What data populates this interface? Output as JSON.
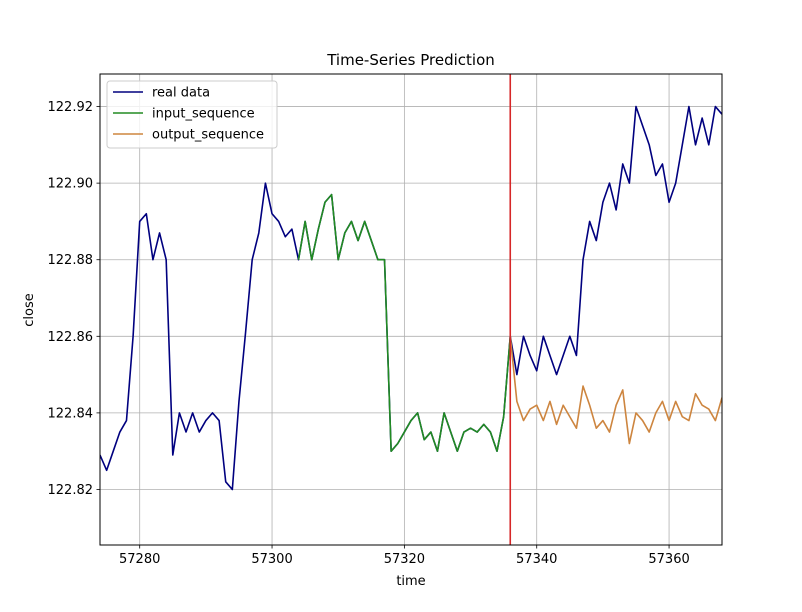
{
  "chart_data": {
    "type": "line",
    "title": "Time-Series Prediction",
    "xlabel": "time",
    "ylabel": "close",
    "xlim": [
      57274,
      57368
    ],
    "ylim": [
      122.8055,
      122.9285
    ],
    "x_ticks": [
      57280,
      57300,
      57320,
      57340,
      57360
    ],
    "x_tick_labels": [
      "57280",
      "57300",
      "57320",
      "57340",
      "57360"
    ],
    "y_ticks": [
      122.82,
      122.84,
      122.86,
      122.88,
      122.9,
      122.92
    ],
    "y_tick_labels": [
      "122.82",
      "122.84",
      "122.86",
      "122.88",
      "122.90",
      "122.92"
    ],
    "grid": true,
    "legend_position": "top-left",
    "vertical_line": {
      "x": 57336,
      "color": "#d62728"
    },
    "series": [
      {
        "name": "real data",
        "color": "#00007f",
        "x": [
          57274,
          57275,
          57276,
          57277,
          57278,
          57279,
          57280,
          57281,
          57282,
          57283,
          57284,
          57285,
          57286,
          57287,
          57288,
          57289,
          57290,
          57291,
          57292,
          57293,
          57294,
          57295,
          57296,
          57297,
          57298,
          57299,
          57300,
          57301,
          57302,
          57303,
          57304,
          57305,
          57306,
          57307,
          57308,
          57309,
          57310,
          57311,
          57312,
          57313,
          57314,
          57315,
          57316,
          57317,
          57318,
          57319,
          57320,
          57321,
          57322,
          57323,
          57324,
          57325,
          57326,
          57327,
          57328,
          57329,
          57330,
          57331,
          57332,
          57333,
          57334,
          57335,
          57336,
          57337,
          57338,
          57339,
          57340,
          57341,
          57342,
          57343,
          57344,
          57345,
          57346,
          57347,
          57348,
          57349,
          57350,
          57351,
          57352,
          57353,
          57354,
          57355,
          57356,
          57357,
          57358,
          57359,
          57360,
          57361,
          57362,
          57363,
          57364,
          57365,
          57366,
          57367,
          57368
        ],
        "values": [
          122.829,
          122.825,
          122.83,
          122.835,
          122.838,
          122.86,
          122.89,
          122.892,
          122.88,
          122.887,
          122.88,
          122.829,
          122.84,
          122.835,
          122.84,
          122.835,
          122.838,
          122.84,
          122.838,
          122.822,
          122.82,
          122.843,
          122.861,
          122.88,
          122.887,
          122.9,
          122.892,
          122.89,
          122.886,
          122.888,
          122.88,
          122.89,
          122.88,
          122.888,
          122.895,
          122.897,
          122.88,
          122.887,
          122.89,
          122.885,
          122.89,
          122.885,
          122.88,
          122.88,
          122.83,
          122.832,
          122.835,
          122.838,
          122.84,
          122.833,
          122.835,
          122.83,
          122.84,
          122.835,
          122.83,
          122.835,
          122.836,
          122.835,
          122.837,
          122.835,
          122.83,
          122.839,
          122.86,
          122.85,
          122.86,
          122.855,
          122.851,
          122.86,
          122.855,
          122.85,
          122.855,
          122.86,
          122.855,
          122.88,
          122.89,
          122.885,
          122.895,
          122.9,
          122.893,
          122.905,
          122.9,
          122.92,
          122.915,
          122.91,
          122.902,
          122.905,
          122.895,
          122.9,
          122.91,
          122.92,
          122.91,
          122.917,
          122.91,
          122.92,
          122.918
        ]
      },
      {
        "name": "input_sequence",
        "color": "#228b22",
        "x": [
          57304,
          57305,
          57306,
          57307,
          57308,
          57309,
          57310,
          57311,
          57312,
          57313,
          57314,
          57315,
          57316,
          57317,
          57318,
          57319,
          57320,
          57321,
          57322,
          57323,
          57324,
          57325,
          57326,
          57327,
          57328,
          57329,
          57330,
          57331,
          57332,
          57333,
          57334,
          57335,
          57336
        ],
        "values": [
          122.88,
          122.89,
          122.88,
          122.888,
          122.895,
          122.897,
          122.88,
          122.887,
          122.89,
          122.885,
          122.89,
          122.885,
          122.88,
          122.88,
          122.83,
          122.832,
          122.835,
          122.838,
          122.84,
          122.833,
          122.835,
          122.83,
          122.84,
          122.835,
          122.83,
          122.835,
          122.836,
          122.835,
          122.837,
          122.835,
          122.83,
          122.839,
          122.86
        ]
      },
      {
        "name": "output_sequence",
        "color": "#cd853f",
        "x": [
          57336,
          57337,
          57338,
          57339,
          57340,
          57341,
          57342,
          57343,
          57344,
          57345,
          57346,
          57347,
          57348,
          57349,
          57350,
          57351,
          57352,
          57353,
          57354,
          57355,
          57356,
          57357,
          57358,
          57359,
          57360,
          57361,
          57362,
          57363,
          57364,
          57365,
          57366,
          57367,
          57368
        ],
        "values": [
          122.86,
          122.843,
          122.838,
          122.841,
          122.842,
          122.838,
          122.843,
          122.837,
          122.842,
          122.839,
          122.836,
          122.847,
          122.842,
          122.836,
          122.838,
          122.835,
          122.842,
          122.846,
          122.832,
          122.84,
          122.838,
          122.835,
          122.84,
          122.843,
          122.838,
          122.843,
          122.839,
          122.838,
          122.845,
          122.842,
          122.841,
          122.838,
          122.844
        ]
      }
    ]
  }
}
